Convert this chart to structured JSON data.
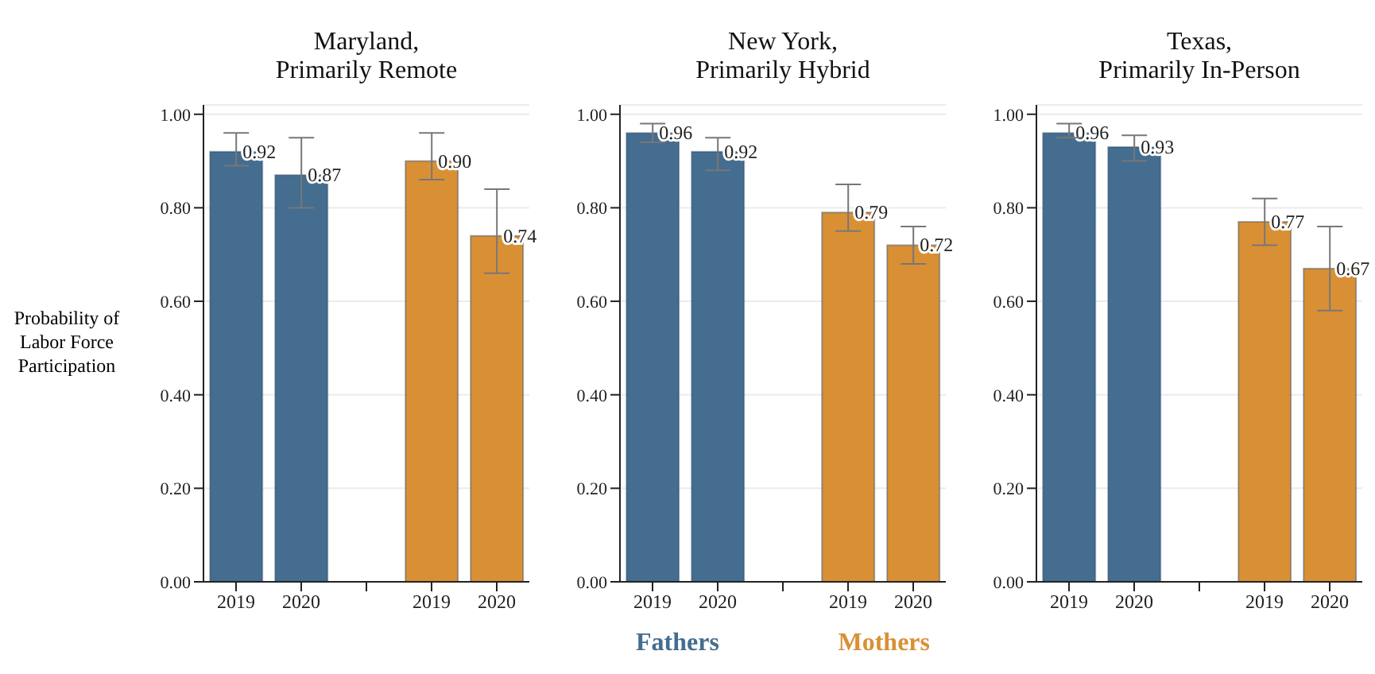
{
  "chart_data": [
    {
      "type": "bar",
      "title": "Maryland,\nPrimarily Remote",
      "ylabel": "Probability of Labor Force Participation",
      "categories": [
        "2019",
        "2020",
        null,
        "2019",
        "2020"
      ],
      "ylim": [
        0,
        1.02
      ],
      "yticks": [
        {
          "value": 0,
          "label": "0.00"
        },
        {
          "value": 0.2,
          "label": "0.20"
        },
        {
          "value": 0.4,
          "label": "0.40"
        },
        {
          "value": 0.6,
          "label": "0.60"
        },
        {
          "value": 0.8,
          "label": "0.80"
        },
        {
          "value": 1,
          "label": "1.00"
        }
      ],
      "grid": "y",
      "series": [
        {
          "color": "#456d8f",
          "values": [
            0.92,
            0.87,
            null,
            null,
            null
          ],
          "errors": [
            [
              0.89,
              0.96
            ],
            [
              0.8,
              0.95
            ],
            null,
            null,
            null
          ],
          "value_labels": [
            "0.92",
            "0.87",
            null,
            null,
            null
          ]
        },
        {
          "color": "#d99035",
          "values": [
            null,
            null,
            null,
            0.9,
            0.74
          ],
          "errors": [
            null,
            null,
            null,
            [
              0.86,
              0.96
            ],
            [
              0.66,
              0.84
            ]
          ],
          "value_labels": [
            null,
            null,
            null,
            "0.90",
            "0.74"
          ]
        }
      ]
    },
    {
      "type": "bar",
      "title": "New York,\nPrimarily Hybrid",
      "categories": [
        "2019",
        "2020",
        null,
        "2019",
        "2020"
      ],
      "ylim": [
        0,
        1.02
      ],
      "yticks": [
        {
          "value": 0,
          "label": "0.00"
        },
        {
          "value": 0.2,
          "label": "0.20"
        },
        {
          "value": 0.4,
          "label": "0.40"
        },
        {
          "value": 0.6,
          "label": "0.60"
        },
        {
          "value": 0.8,
          "label": "0.80"
        },
        {
          "value": 1,
          "label": "1.00"
        }
      ],
      "grid": "y",
      "legend": "bottom",
      "series": [
        {
          "name": "Fathers",
          "color": "#456d8f",
          "values": [
            0.96,
            0.92,
            null,
            null,
            null
          ],
          "errors": [
            [
              0.94,
              0.98
            ],
            [
              0.88,
              0.95
            ],
            null,
            null,
            null
          ],
          "value_labels": [
            "0.96",
            "0.92",
            null,
            null,
            null
          ]
        },
        {
          "name": "Mothers",
          "color": "#d99035",
          "values": [
            null,
            null,
            null,
            0.79,
            0.72
          ],
          "errors": [
            null,
            null,
            null,
            [
              0.75,
              0.85
            ],
            [
              0.68,
              0.76
            ]
          ],
          "value_labels": [
            null,
            null,
            null,
            "0.79",
            "0.72"
          ]
        }
      ]
    },
    {
      "type": "bar",
      "title": "Texas,\nPrimarily In-Person",
      "categories": [
        "2019",
        "2020",
        null,
        "2019",
        "2020"
      ],
      "ylim": [
        0,
        1.02
      ],
      "yticks": [
        {
          "value": 0,
          "label": "0.00"
        },
        {
          "value": 0.2,
          "label": "0.20"
        },
        {
          "value": 0.4,
          "label": "0.40"
        },
        {
          "value": 0.6,
          "label": "0.60"
        },
        {
          "value": 0.8,
          "label": "0.80"
        },
        {
          "value": 1,
          "label": "1.00"
        }
      ],
      "grid": "y",
      "series": [
        {
          "color": "#456d8f",
          "values": [
            0.96,
            0.93,
            null,
            null,
            null
          ],
          "errors": [
            [
              0.95,
              0.98
            ],
            [
              0.9,
              0.955
            ],
            null,
            null,
            null
          ],
          "value_labels": [
            "0.96",
            "0.93",
            null,
            null,
            null
          ]
        },
        {
          "color": "#d99035",
          "values": [
            null,
            null,
            null,
            0.77,
            0.67
          ],
          "errors": [
            null,
            null,
            null,
            [
              0.72,
              0.82
            ],
            [
              0.58,
              0.76
            ]
          ],
          "value_labels": [
            null,
            null,
            null,
            "0.77",
            "0.67"
          ]
        }
      ]
    }
  ]
}
